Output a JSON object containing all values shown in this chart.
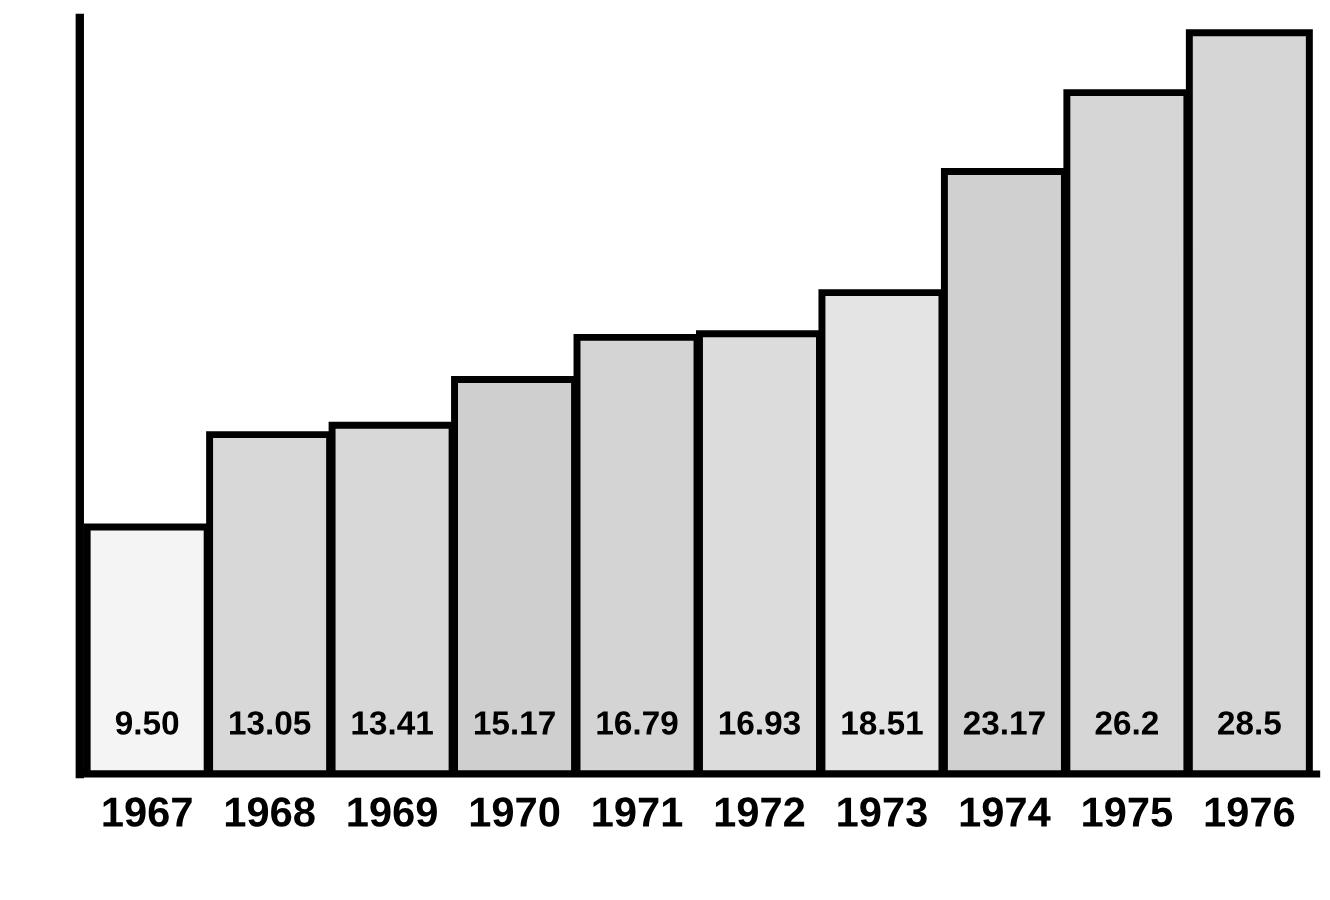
{
  "chart_data": {
    "type": "bar",
    "categories": [
      "1967",
      "1968",
      "1969",
      "1970",
      "1971",
      "1972",
      "1973",
      "1974",
      "1975",
      "1976"
    ],
    "values": [
      9.5,
      13.05,
      13.41,
      15.17,
      16.79,
      16.93,
      18.51,
      23.17,
      26.2,
      28.5
    ],
    "value_labels": [
      "9.50",
      "13.05",
      "13.41",
      "15.17",
      "16.79",
      "16.93",
      "18.51",
      "23.17",
      "26.2",
      "28.5"
    ],
    "colors": [
      "#f4f4f4",
      "#d8d8d8",
      "#d8d8d8",
      "#cfcfcf",
      "#d4d4d4",
      "#dcdcdc",
      "#e4e4e4",
      "#d0d0d0",
      "#d6d6d6",
      "#d6d6d6"
    ],
    "grid": false,
    "legend": false
  }
}
